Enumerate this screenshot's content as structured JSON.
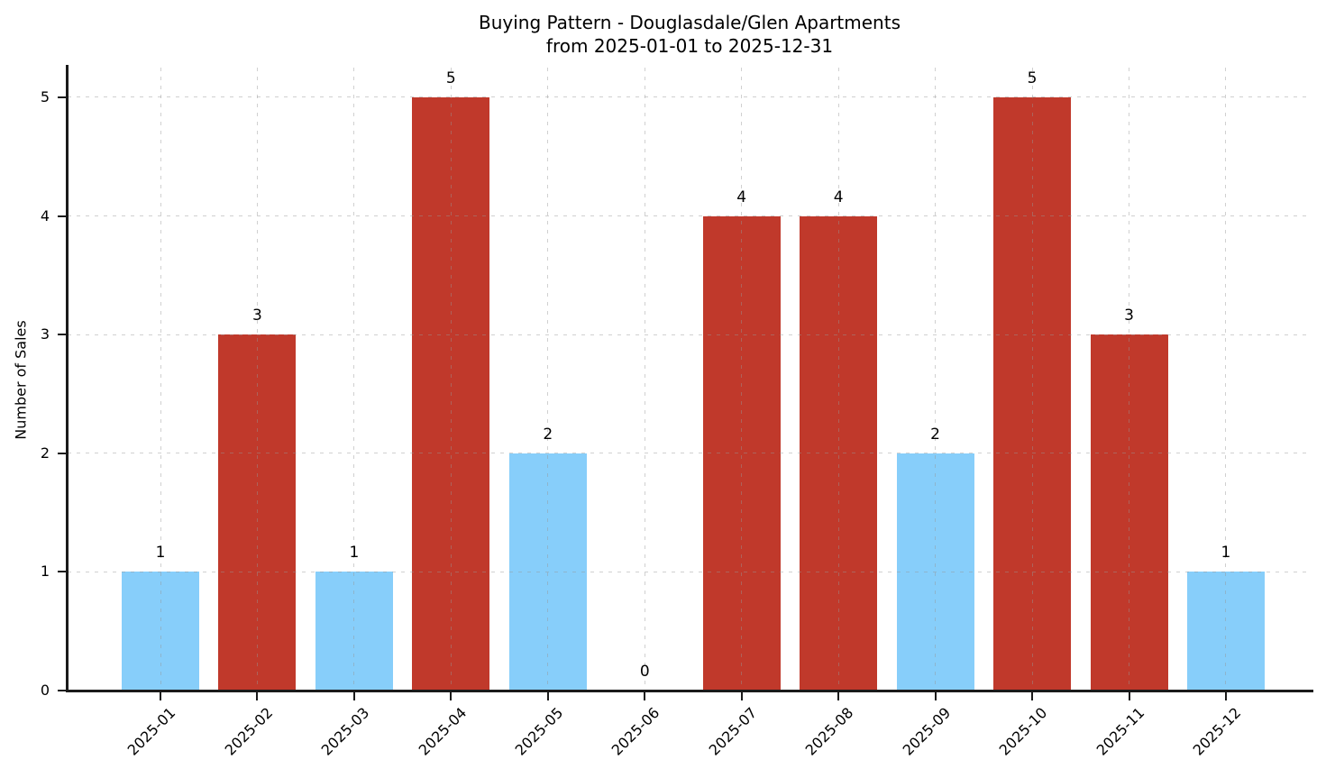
{
  "title": {
    "line1": "Buying Pattern - Douglasdale/Glen Apartments",
    "line2": "from 2025-01-01 to 2025-12-31"
  },
  "chart_data": {
    "type": "bar",
    "title": "Buying Pattern - Douglasdale/Glen Apartments from 2025-01-01 to 2025-12-31",
    "categories": [
      "2025-01",
      "2025-02",
      "2025-03",
      "2025-04",
      "2025-05",
      "2025-06",
      "2025-07",
      "2025-08",
      "2025-09",
      "2025-10",
      "2025-11",
      "2025-12"
    ],
    "values": [
      1,
      3,
      1,
      5,
      2,
      0,
      4,
      4,
      2,
      5,
      3,
      1
    ],
    "bar_colors": [
      "#87cefa",
      "#c0392b",
      "#87cefa",
      "#c0392b",
      "#87cefa",
      "none",
      "#c0392b",
      "#c0392b",
      "#87cefa",
      "#c0392b",
      "#c0392b",
      "#87cefa"
    ],
    "value_labels": [
      "1",
      "3",
      "1",
      "5",
      "2",
      "0",
      "4",
      "4",
      "2",
      "5",
      "3",
      "1"
    ],
    "xlabel": "",
    "ylabel": "Number of Sales",
    "yticks": [
      "0",
      "1",
      "2",
      "3",
      "4",
      "5"
    ],
    "ylim": [
      0,
      5.25
    ],
    "grid": "dashed-both-axes",
    "legend": "none",
    "x_tick_rotation_deg": 45
  },
  "colors": {
    "bar_low": "#87cefa",
    "bar_high": "#c0392b",
    "axis": "#1a1a1a",
    "grid": "#d5d5d5",
    "background": "#ffffff",
    "text": "#000000"
  }
}
